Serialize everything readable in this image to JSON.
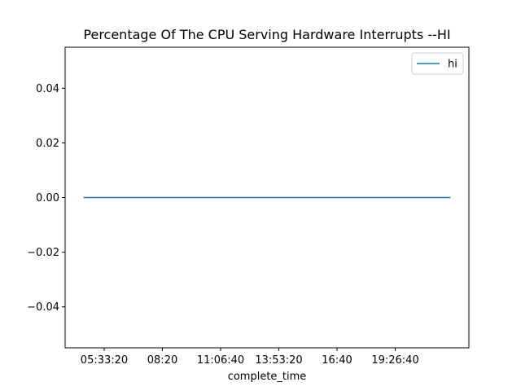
{
  "chart_data": {
    "type": "line",
    "title": "Percentage Of The CPU Serving Hardware Interrupts --HI",
    "xlabel": "complete_time",
    "ylabel": "",
    "x_tick_labels": [
      "05:33:20",
      "08:20",
      "11:06:40",
      "13:53:20",
      "16:40",
      "19:26:40"
    ],
    "y_ticks": [
      -0.04,
      -0.02,
      0.0,
      0.02,
      0.04
    ],
    "y_tick_labels": [
      "−0.04",
      "−0.02",
      "0.00",
      "0.02",
      "0.04"
    ],
    "ylim": [
      -0.055,
      0.055
    ],
    "series": [
      {
        "name": "hi",
        "color": "#1f77b4",
        "x": [
          "04:34",
          "22:05"
        ],
        "values": [
          0,
          0
        ]
      }
    ],
    "legend": {
      "position": "top-right"
    },
    "grid": false
  }
}
